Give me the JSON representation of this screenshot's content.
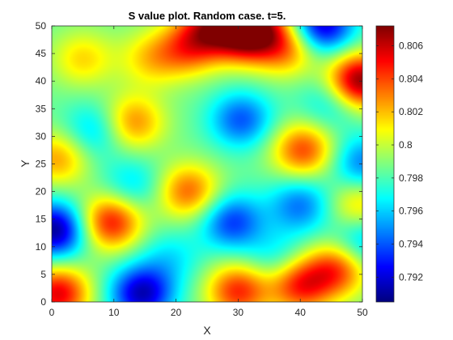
{
  "chart_data": {
    "type": "heatmap",
    "title": "S value plot. Random case. t=5.",
    "xlabel": "X",
    "ylabel": "Y",
    "xlim": [
      0,
      50
    ],
    "ylim": [
      0,
      50
    ],
    "xticks": [
      0,
      10,
      20,
      30,
      40,
      50
    ],
    "yticks": [
      0,
      5,
      10,
      15,
      20,
      25,
      30,
      35,
      40,
      45,
      50
    ],
    "colormap": "jet",
    "colorbar": {
      "placement": "right",
      "clim": [
        0.7905,
        0.8072
      ],
      "ticks": [
        0.792,
        0.794,
        0.796,
        0.798,
        0.8,
        0.802,
        0.804,
        0.806
      ],
      "tick_labels": [
        "0.792",
        "0.794",
        "0.796",
        "0.798",
        "0.8",
        "0.802",
        "0.804",
        "0.806"
      ]
    },
    "baseline": 0.7985,
    "features": [
      {
        "x": 49.5,
        "y": 40,
        "value": 0.8072
      },
      {
        "x": 1,
        "y": 1.5,
        "value": 0.8055
      },
      {
        "x": 9.5,
        "y": 14.5,
        "value": 0.805
      },
      {
        "x": 40.5,
        "y": 27.5,
        "value": 0.804
      },
      {
        "x": 26,
        "y": 50,
        "value": 0.8045
      },
      {
        "x": 33,
        "y": 50,
        "value": 0.804
      },
      {
        "x": 31,
        "y": 48,
        "value": 0.8035
      },
      {
        "x": 22,
        "y": 46,
        "value": 0.803
      },
      {
        "x": 38,
        "y": 46,
        "value": 0.803
      },
      {
        "x": 30,
        "y": 2,
        "value": 0.8045
      },
      {
        "x": 40,
        "y": 3,
        "value": 0.8045
      },
      {
        "x": 46,
        "y": 6,
        "value": 0.804
      },
      {
        "x": 22,
        "y": 20,
        "value": 0.8035
      },
      {
        "x": 1,
        "y": 26,
        "value": 0.8025
      },
      {
        "x": 5,
        "y": 44,
        "value": 0.8015
      },
      {
        "x": 13,
        "y": 32.5,
        "value": 0.803
      },
      {
        "x": 49.5,
        "y": 17.5,
        "value": 0.802
      },
      {
        "x": 16,
        "y": 44,
        "value": 0.8015
      },
      {
        "x": 0.5,
        "y": 13,
        "value": 0.7908
      },
      {
        "x": 14.5,
        "y": 1.5,
        "value": 0.7915
      },
      {
        "x": 43.5,
        "y": 50,
        "value": 0.7915
      },
      {
        "x": 29,
        "y": 14.5,
        "value": 0.7935
      },
      {
        "x": 30.5,
        "y": 33,
        "value": 0.794
      },
      {
        "x": 40,
        "y": 17.5,
        "value": 0.7945
      },
      {
        "x": 50,
        "y": 25,
        "value": 0.7945
      },
      {
        "x": 50,
        "y": 11,
        "value": 0.795
      },
      {
        "x": 7,
        "y": 31,
        "value": 0.7955
      },
      {
        "x": 13,
        "y": 21,
        "value": 0.796
      },
      {
        "x": 19,
        "y": 8,
        "value": 0.7965
      },
      {
        "x": 45,
        "y": 36,
        "value": 0.796
      },
      {
        "x": 36,
        "y": 8,
        "value": 0.7965
      }
    ]
  }
}
